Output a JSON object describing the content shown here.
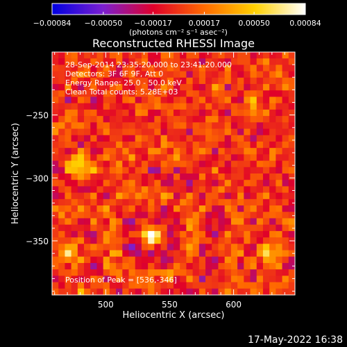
{
  "chart_data": {
    "type": "heatmap",
    "title": "Reconstructed RHESSI Image",
    "xlabel": "Heliocentric X (arcsec)",
    "ylabel": "Heliocentric Y (arcsec)",
    "xlim": [
      458,
      648
    ],
    "ylim": [
      -393,
      -200
    ],
    "x_ticks": [
      500,
      550,
      600
    ],
    "y_ticks": [
      -250,
      -300,
      -350
    ],
    "x_tick_labels": [
      "500",
      "550",
      "600"
    ],
    "y_tick_labels": [
      "−250",
      "−300",
      "−350"
    ],
    "colorbar": {
      "range": [
        -0.00084,
        0.00084
      ],
      "ticks": [
        -0.00084,
        -0.0005,
        -0.00017,
        0.00017,
        0.0005,
        0.00084
      ],
      "tick_labels": [
        "−0.00084",
        "−0.00050",
        "−0.00017",
        "0.00017",
        "0.00050",
        "0.00084"
      ],
      "unit_label": "(photons cm⁻² s⁻¹ asec⁻²)",
      "colors": [
        "#0000e0",
        "#7a1fd0",
        "#e0002a",
        "#ff6a00",
        "#ffd000",
        "#ffffff"
      ]
    },
    "annotations": [
      "28-Sep-2014 23:35:20.000 to 23:41:20.000",
      "Detectors: 3F 6F 9F, Att 0",
      "Energy Range: 25.0 - 50.0 keV",
      "Clean     Total counts: 5.28E+03"
    ],
    "peak_label": "Position of Peak = [536,-346]",
    "peak": [
      536,
      -346
    ],
    "sources": [
      {
        "x": 536,
        "y": -346,
        "amplitude": 1.0,
        "sigma": 6
      },
      {
        "x": 480,
        "y": -290,
        "amplitude": 0.55,
        "sigma": 10
      },
      {
        "x": 472,
        "y": -360,
        "amplitude": 0.5,
        "sigma": 10
      },
      {
        "x": 628,
        "y": -360,
        "amplitude": 0.55,
        "sigma": 11
      },
      {
        "x": 615,
        "y": -245,
        "amplitude": 0.35,
        "sigma": 9
      }
    ]
  },
  "footer": {
    "timestamp": "17-May-2022 16:38"
  }
}
